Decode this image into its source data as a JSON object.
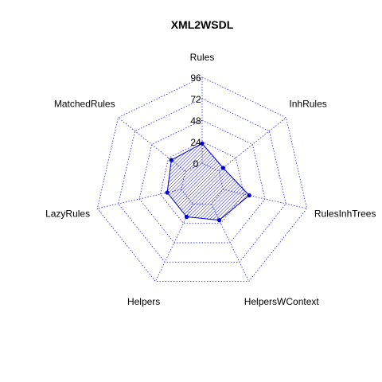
{
  "chart_data": {
    "type": "radar",
    "title": "XML2WSDL",
    "axes": [
      "Rules",
      "InhRules",
      "RulesInhTrees",
      "HelpersWContext",
      "Helpers",
      "LazyRules",
      "MatchedRules"
    ],
    "ticks": [
      "0",
      "24",
      "48",
      "72",
      "96"
    ],
    "range": [
      0,
      96
    ],
    "series": [
      {
        "values": [
          22,
          6,
          30,
          20,
          16,
          16,
          20
        ]
      }
    ],
    "colors": {
      "grid": "#3b3bd6",
      "series": "#0000cc"
    },
    "grid": true
  }
}
